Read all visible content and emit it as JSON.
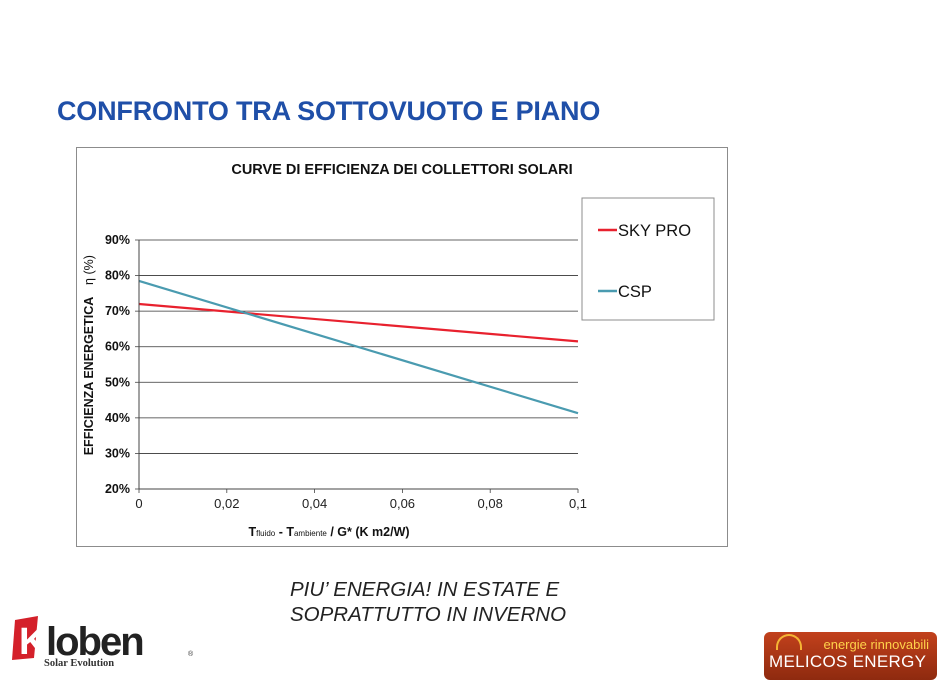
{
  "slide": {
    "title": "CONFRONTO TRA SOTTOVUOTO E PIANO",
    "tagline_line1": "PIU’ ENERGIA! IN ESTATE E",
    "tagline_line2": "SOPRATTUTTO IN INVERNO"
  },
  "logos": {
    "kloben": "Kloben",
    "kloben_sub": "Solar Evolution",
    "melicos_top": "energie rinnovabili",
    "melicos_name": "MELICOS ENERGY"
  },
  "chart_data": {
    "type": "line",
    "title": "CURVE DI EFFICIENZA DEI COLLETTORI SOLARI",
    "ylabel": "EFFICIENZA ENERGETICA",
    "ylabel_symbol": "η (%)",
    "xlabel": {
      "t1": "T",
      "s1": "fluido",
      "sep": " - ",
      "t2": "T",
      "s2": "ambiente",
      "rest": " / G* (K m2/W)"
    },
    "x_ticks": [
      "0",
      "0,02",
      "0,04",
      "0,06",
      "0,08",
      "0,1"
    ],
    "x_tick_values": [
      0,
      0.02,
      0.04,
      0.06,
      0.08,
      0.1
    ],
    "y_ticks": [
      "20%",
      "30%",
      "40%",
      "50%",
      "60%",
      "70%",
      "80%",
      "90%"
    ],
    "y_tick_values": [
      20,
      30,
      40,
      50,
      60,
      70,
      80,
      90
    ],
    "xlim": [
      0,
      0.1
    ],
    "ylim": [
      20,
      90
    ],
    "grid": "horizontal",
    "legend_position": "right",
    "series": [
      {
        "name": "SKY PRO",
        "color": "#e8212e",
        "x": [
          0,
          0.1
        ],
        "y": [
          72,
          61.5
        ]
      },
      {
        "name": "CSP",
        "color": "#4a9bb0",
        "x": [
          0,
          0.1
        ],
        "y": [
          78.5,
          41.3
        ]
      }
    ]
  },
  "colors": {
    "title": "#1f4fa8",
    "grid": "#333333"
  }
}
